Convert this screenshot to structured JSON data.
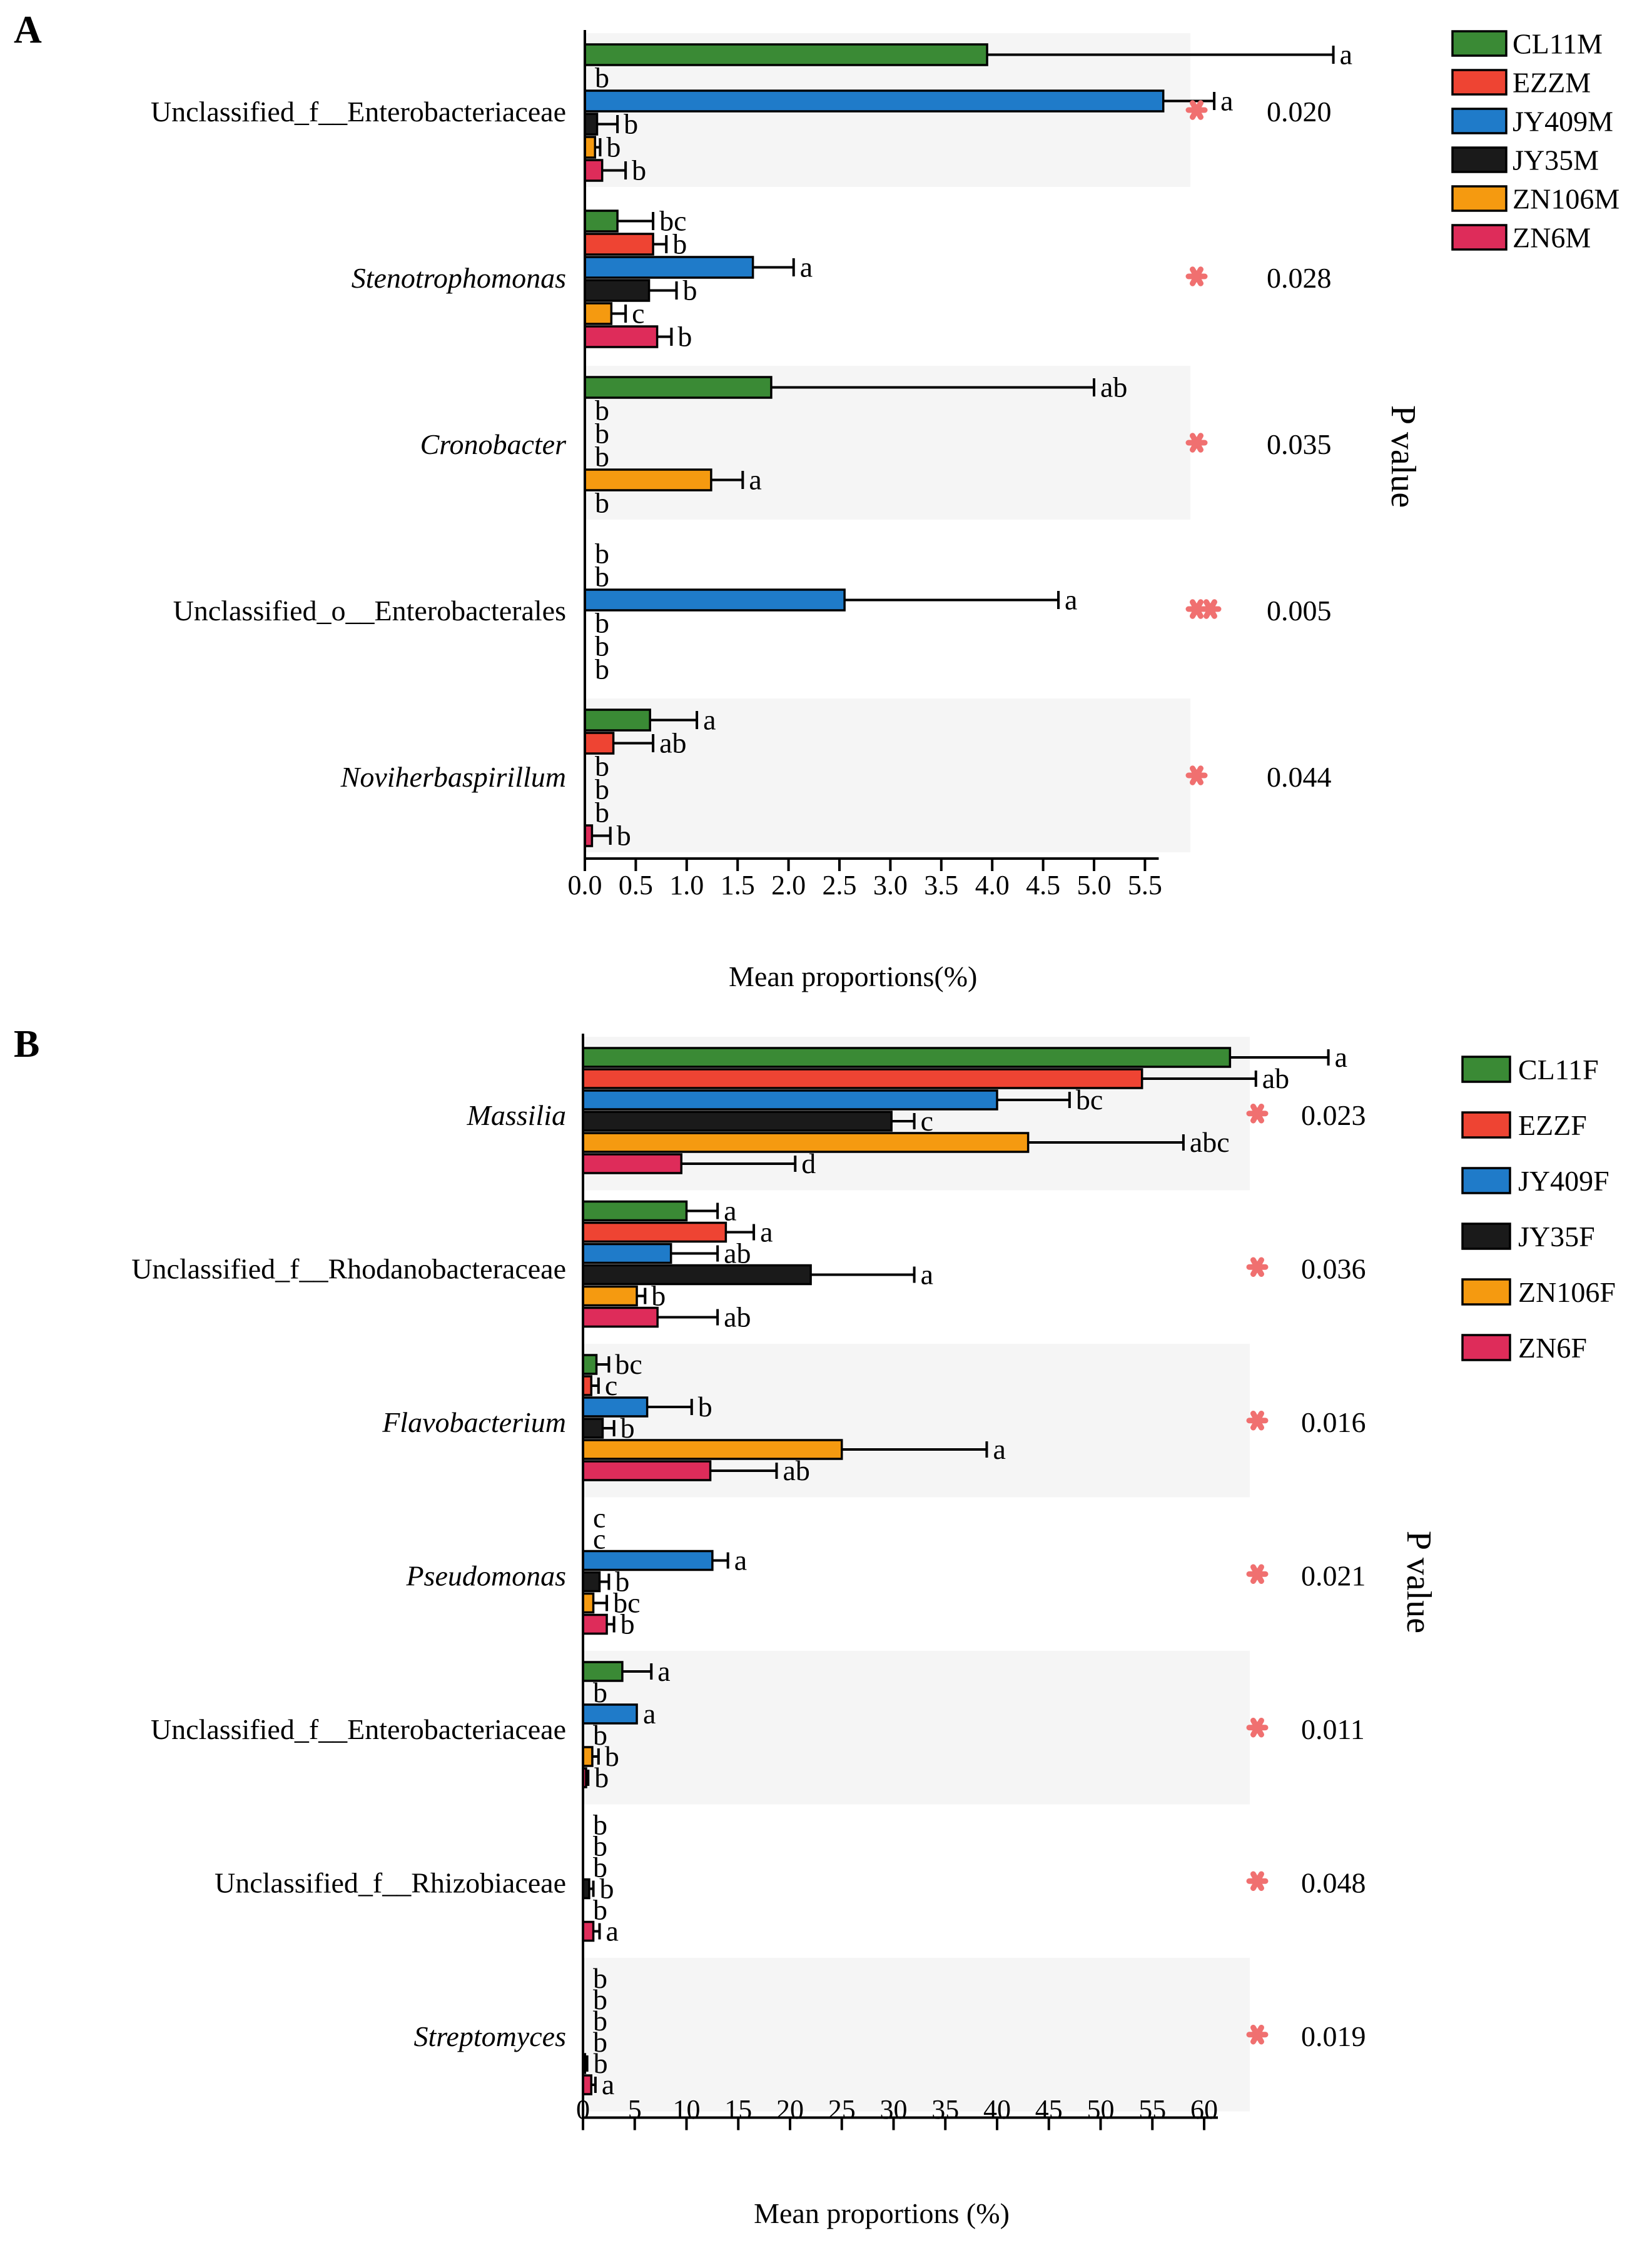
{
  "chart_data": [
    {
      "panel_label": "A",
      "type": "bar",
      "orientation": "horizontal",
      "xlabel": "Mean proportions(%)",
      "right_axis_label": "P value",
      "xlim": [
        0,
        5.8
      ],
      "xticks": [
        0.0,
        0.5,
        1.0,
        1.5,
        2.0,
        2.5,
        3.0,
        3.5,
        4.0,
        4.5,
        5.0,
        5.5
      ],
      "xtick_labels": [
        "0.0",
        "0.5",
        "1.0",
        "1.5",
        "2.0",
        "2.5",
        "3.0",
        "3.5",
        "4.0",
        "4.5",
        "5.0",
        "5.5"
      ],
      "legend": [
        {
          "name": "CL11M",
          "color": "#3a8a35"
        },
        {
          "name": "EZZM",
          "color": "#ee4433"
        },
        {
          "name": "JY409M",
          "color": "#1f7bc9"
        },
        {
          "name": "JY35M",
          "color": "#1a1a1a"
        },
        {
          "name": "ZN106M",
          "color": "#f59a10"
        },
        {
          "name": "ZN6M",
          "color": "#de2c5a"
        }
      ],
      "categories": [
        {
          "name": "Unclassified_f__Enterobacteriaceae",
          "italic": false,
          "p_value": "0.020",
          "stars": 1,
          "values": [
            3.95,
            0.0,
            5.68,
            0.12,
            0.1,
            0.17
          ],
          "errors": [
            7.35,
            0.0,
            6.18,
            0.32,
            0.15,
            0.4
          ],
          "letters": [
            "a",
            "b",
            "a",
            "b",
            "b",
            "b"
          ]
        },
        {
          "name": "Stenotrophomonas",
          "italic": true,
          "p_value": "0.028",
          "stars": 1,
          "values": [
            0.32,
            0.67,
            1.65,
            0.63,
            0.26,
            0.71
          ],
          "errors": [
            0.67,
            0.8,
            2.05,
            0.9,
            0.4,
            0.85
          ],
          "letters": [
            "bc",
            "b",
            "a",
            "b",
            "c",
            "b"
          ]
        },
        {
          "name": "Cronobacter",
          "italic": true,
          "p_value": "0.035",
          "stars": 1,
          "values": [
            1.83,
            0.0,
            0.0,
            0.0,
            1.24,
            0.0
          ],
          "errors": [
            5.0,
            0.0,
            0.0,
            0.0,
            1.55,
            0.0
          ],
          "letters": [
            "ab",
            "b",
            "b",
            "b",
            "a",
            "b"
          ]
        },
        {
          "name": "Unclassified_o__Enterobacterales",
          "italic": false,
          "p_value": "0.005",
          "stars": 2,
          "values": [
            0.0,
            0.0,
            2.55,
            0.0,
            0.0,
            0.0
          ],
          "errors": [
            0.0,
            0.0,
            4.65,
            0.0,
            0.0,
            0.0
          ],
          "letters": [
            "b",
            "b",
            "a",
            "b",
            "b",
            "b"
          ]
        },
        {
          "name": "Noviherbaspirillum",
          "italic": true,
          "p_value": "0.044",
          "stars": 1,
          "values": [
            0.64,
            0.28,
            0.0,
            0.0,
            0.0,
            0.07
          ],
          "errors": [
            1.1,
            0.67,
            0.0,
            0.0,
            0.0,
            0.25
          ],
          "letters": [
            "a",
            "ab",
            "b",
            "b",
            "b",
            "b"
          ]
        }
      ]
    },
    {
      "panel_label": "B",
      "type": "bar",
      "orientation": "horizontal",
      "xlabel": "Mean proportions (%)",
      "right_axis_label": "P value",
      "xlim": [
        0,
        64
      ],
      "xticks": [
        0,
        5,
        10,
        15,
        20,
        25,
        30,
        35,
        40,
        45,
        50,
        55,
        60
      ],
      "xtick_labels": [
        "0",
        "5",
        "10",
        "15",
        "20",
        "25",
        "30",
        "35",
        "40",
        "45",
        "50",
        "55",
        "60"
      ],
      "legend": [
        {
          "name": "CL11F",
          "color": "#3a8a35"
        },
        {
          "name": "EZZF",
          "color": "#ee4433"
        },
        {
          "name": "JY409F",
          "color": "#1f7bc9"
        },
        {
          "name": "JY35F",
          "color": "#1a1a1a"
        },
        {
          "name": "ZN106F",
          "color": "#f59a10"
        },
        {
          "name": "ZN6F",
          "color": "#de2c5a"
        }
      ],
      "categories": [
        {
          "name": "Massilia",
          "italic": true,
          "p_value": "0.023",
          "stars": 1,
          "values": [
            62.5,
            54.0,
            40.0,
            29.8,
            43.0,
            9.5
          ],
          "errors": [
            72.0,
            65.0,
            47.0,
            32.0,
            58.0,
            20.5
          ],
          "letters": [
            "a",
            "ab",
            "bc",
            "c",
            "abc",
            "d"
          ]
        },
        {
          "name": "Unclassified_f__Rhodanobacteraceae",
          "italic": false,
          "p_value": "0.036",
          "stars": 1,
          "values": [
            10.0,
            13.8,
            8.5,
            22.0,
            5.2,
            7.2
          ],
          "errors": [
            13.0,
            16.5,
            13.0,
            32.0,
            6.0,
            13.0
          ],
          "letters": [
            "a",
            "a",
            "ab",
            "a",
            "b",
            "ab"
          ]
        },
        {
          "name": "Flavobacterium",
          "italic": true,
          "p_value": "0.016",
          "stars": 1,
          "values": [
            1.3,
            0.8,
            6.2,
            1.9,
            25.0,
            12.3
          ],
          "errors": [
            2.5,
            1.5,
            10.5,
            3.0,
            39.0,
            18.7
          ],
          "letters": [
            "bc",
            "c",
            "b",
            "b",
            "a",
            "ab"
          ]
        },
        {
          "name": "Pseudomonas",
          "italic": true,
          "p_value": "0.021",
          "stars": 1,
          "values": [
            0.0,
            0.0,
            12.5,
            1.6,
            1.0,
            2.3
          ],
          "errors": [
            0.0,
            0.0,
            14.0,
            2.5,
            2.3,
            3.0
          ],
          "letters": [
            "c",
            "c",
            "a",
            "b",
            "bc",
            "b"
          ]
        },
        {
          "name": "Unclassified_f__Enterobacteriaceae",
          "italic": false,
          "p_value": "0.011",
          "stars": 1,
          "values": [
            3.8,
            0.0,
            5.2,
            0.0,
            0.9,
            0.3
          ],
          "errors": [
            6.6,
            0.0,
            5.2,
            0.0,
            1.5,
            0.5
          ],
          "letters": [
            "a",
            "b",
            "a",
            "b",
            "b",
            "b"
          ]
        },
        {
          "name": "Unclassified_f__Rhizobiaceae",
          "italic": false,
          "p_value": "0.048",
          "stars": 1,
          "values": [
            0.0,
            0.0,
            0.0,
            0.6,
            0.0,
            1.0
          ],
          "errors": [
            0.0,
            0.0,
            0.0,
            1.0,
            0.0,
            1.6
          ],
          "letters": [
            "b",
            "b",
            "b",
            "b",
            "b",
            "a"
          ]
        },
        {
          "name": "Streptomyces",
          "italic": true,
          "p_value": "0.019",
          "stars": 1,
          "values": [
            0.0,
            0.0,
            0.0,
            0.0,
            0.2,
            0.8
          ],
          "errors": [
            0.0,
            0.0,
            0.0,
            0.0,
            0.4,
            1.2
          ],
          "letters": [
            "b",
            "b",
            "b",
            "b",
            "b",
            "a"
          ]
        }
      ]
    }
  ]
}
